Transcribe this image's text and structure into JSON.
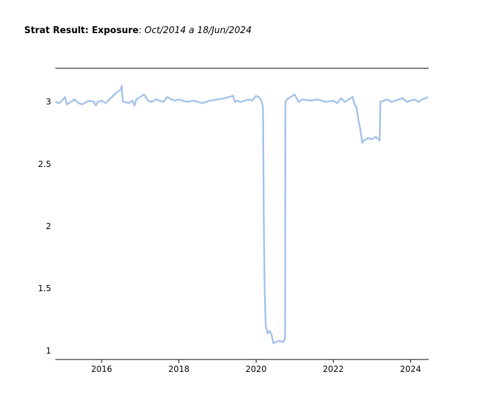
{
  "title": {
    "main": "Strat Result: Exposure",
    "separator": ": ",
    "subtitle": "Oct/2014 a 18/Jun/2024"
  },
  "chart_data": {
    "type": "line",
    "title": "Strat Result: Exposure: Oct/2014 a 18/Jun/2024",
    "xlabel": "",
    "ylabel": "",
    "xlim": [
      2014.8,
      2024.47
    ],
    "ylim": [
      0.93,
      3.27
    ],
    "x_ticks": [
      2016,
      2018,
      2020,
      2022,
      2024
    ],
    "x_tick_labels": [
      "2016",
      "2018",
      "2020",
      "2022",
      "2024"
    ],
    "y_ticks": [
      1,
      1.5,
      2,
      2.5,
      3
    ],
    "y_tick_labels": [
      "1",
      "1.5",
      "2",
      "2.5",
      "3"
    ],
    "grid": false,
    "legend": "none",
    "line_color": "#a4c2ea",
    "series": [
      {
        "x": [
          2014.8,
          2014.9,
          2015.0,
          2015.05,
          2015.1,
          2015.2,
          2015.3,
          2015.4,
          2015.5,
          2015.6,
          2015.7,
          2015.8,
          2015.85,
          2015.9,
          2016.0,
          2016.1,
          2016.2,
          2016.3,
          2016.4,
          2016.5,
          2016.52,
          2016.55,
          2016.6,
          2016.7,
          2016.8,
          2016.85,
          2016.9,
          2017.0,
          2017.1,
          2017.2,
          2017.3,
          2017.4,
          2017.5,
          2017.6,
          2017.7,
          2017.8,
          2017.9,
          2018.0,
          2018.2,
          2018.4,
          2018.6,
          2018.8,
          2019.0,
          2019.2,
          2019.4,
          2019.45,
          2019.5,
          2019.6,
          2019.8,
          2019.9,
          2020.0,
          2020.1,
          2020.15,
          2020.18,
          2020.2,
          2020.22,
          2020.25,
          2020.3,
          2020.35,
          2020.4,
          2020.45,
          2020.5,
          2020.6,
          2020.7,
          2020.75,
          2020.76,
          2020.8,
          2020.9,
          2021.0,
          2021.1,
          2021.2,
          2021.4,
          2021.6,
          2021.8,
          2022.0,
          2022.1,
          2022.2,
          2022.3,
          2022.4,
          2022.5,
          2022.55,
          2022.6,
          2022.65,
          2022.7,
          2022.75,
          2022.8,
          2022.9,
          2023.0,
          2023.1,
          2023.2,
          2023.22,
          2023.3,
          2023.4,
          2023.5,
          2023.6,
          2023.7,
          2023.8,
          2023.9,
          2024.0,
          2024.1,
          2024.2,
          2024.3,
          2024.4,
          2024.45
        ],
        "y": [
          3.0,
          2.99,
          3.02,
          3.04,
          2.98,
          3.0,
          3.02,
          2.99,
          2.98,
          3.0,
          3.01,
          3.0,
          2.97,
          3.0,
          3.01,
          2.99,
          3.02,
          3.05,
          3.08,
          3.1,
          3.13,
          3.0,
          3.0,
          2.99,
          3.01,
          2.97,
          3.02,
          3.04,
          3.06,
          3.01,
          3.0,
          3.02,
          3.01,
          3.0,
          3.04,
          3.02,
          3.01,
          3.02,
          3.0,
          3.01,
          2.99,
          3.01,
          3.02,
          3.03,
          3.05,
          3.0,
          3.01,
          3.0,
          3.02,
          3.01,
          3.05,
          3.03,
          3.0,
          2.95,
          2.0,
          1.5,
          1.2,
          1.14,
          1.16,
          1.13,
          1.06,
          1.07,
          1.08,
          1.07,
          1.1,
          3.0,
          3.02,
          3.04,
          3.06,
          3.0,
          3.02,
          3.01,
          3.02,
          3.0,
          3.01,
          2.99,
          3.03,
          3.0,
          3.02,
          3.04,
          2.98,
          2.96,
          2.85,
          2.78,
          2.67,
          2.69,
          2.71,
          2.7,
          2.72,
          2.69,
          3.0,
          3.01,
          3.02,
          3.0,
          3.01,
          3.02,
          3.03,
          3.0,
          3.01,
          3.02,
          3.0,
          3.02,
          3.03,
          3.04
        ]
      }
    ]
  }
}
